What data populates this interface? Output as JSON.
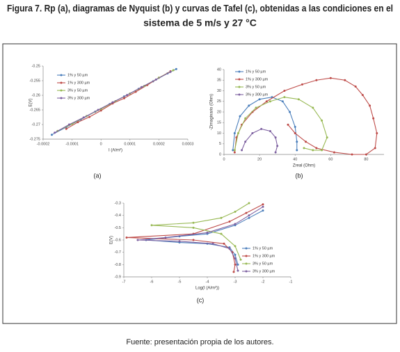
{
  "title_lines": [
    "Figura 7. Rp (a), diagramas de Nyquist (b) y curvas de Tafel (c), obtenidas a las condiciones en el",
    "sistema de 5 m/s y 27 °C"
  ],
  "source": "Fuente: presentación propia de los autores.",
  "chart_data": [
    {
      "type": "line",
      "caption": "(a)",
      "x_label": "I (A/m²)",
      "y_label": "E(V)",
      "xlim": [
        -0.0002,
        0.0003
      ],
      "xticks": [
        -0.0002,
        -0.0001,
        0,
        0.0001,
        0.0002,
        0.0003
      ],
      "ylim": [
        -0.275,
        -0.25
      ],
      "yticks": [
        -0.275,
        -0.27,
        -0.265,
        -0.26,
        -0.255,
        -0.25
      ],
      "series": [
        {
          "name": "1% y 50 µm",
          "color": "#4a7ebb",
          "x": [
            -0.00017,
            -0.00012,
            -7e-05,
            -2e-05,
            3e-05,
            8e-05,
            0.00013,
            0.00018,
            0.00023,
            0.00026
          ],
          "values": [
            -0.2735,
            -0.2709,
            -0.2683,
            -0.2656,
            -0.263,
            -0.2604,
            -0.2578,
            -0.2552,
            -0.2525,
            -0.251
          ]
        },
        {
          "name": "1% y 300 µm",
          "color": "#be4b48",
          "x": [
            -0.00012,
            -8e-05,
            -4e-05,
            0,
            4e-05,
            8e-05,
            0.00012,
            0.00016,
            0.0002,
            0.00024
          ],
          "values": [
            -0.2715,
            -0.2692,
            -0.2674,
            -0.2652,
            -0.2628,
            -0.261,
            -0.2588,
            -0.2565,
            -0.254,
            -0.2518
          ]
        },
        {
          "name": "3% y 50 µm",
          "color": "#98b954",
          "x": [
            -0.00015,
            -0.0001,
            -5e-05,
            0,
            5e-05,
            0.0001,
            0.00015,
            0.0002,
            0.00025
          ],
          "values": [
            -0.2722,
            -0.2698,
            -0.2671,
            -0.2647,
            -0.262,
            -0.2594,
            -0.2568,
            -0.254,
            -0.2514
          ]
        },
        {
          "name": "3% y 300 µm",
          "color": "#7d60a0",
          "x": [
            -0.00016,
            -0.00011,
            -6e-05,
            -1e-05,
            4e-05,
            9e-05,
            0.00014,
            0.00019,
            0.00024
          ],
          "values": [
            -0.2728,
            -0.27,
            -0.2676,
            -0.265,
            -0.2624,
            -0.2599,
            -0.2572,
            -0.2546,
            -0.252
          ]
        }
      ]
    },
    {
      "type": "line",
      "caption": "(b)",
      "x_label": "Zreal (Ohm)",
      "y_label": "-Zimaginario (Ohm)",
      "xlim": [
        0,
        90
      ],
      "xticks": [
        0,
        20,
        40,
        60,
        80
      ],
      "ylim": [
        0,
        40
      ],
      "yticks": [
        0,
        5,
        10,
        15,
        20,
        25,
        30,
        35,
        40
      ],
      "series": [
        {
          "name": "1% y 50 µm",
          "color": "#4a7ebb",
          "x": [
            5,
            6,
            9,
            14,
            20,
            27,
            33,
            37,
            40,
            41,
            41
          ],
          "values": [
            2,
            10,
            18,
            23,
            26,
            27,
            25,
            20,
            13,
            6,
            2
          ]
        },
        {
          "name": "1% y 300 µm",
          "color": "#be4b48",
          "x": [
            6,
            7,
            10,
            16,
            24,
            34,
            44,
            52,
            60,
            68,
            74,
            78,
            82,
            84,
            86,
            85,
            80,
            72,
            62,
            52,
            46,
            40,
            36
          ],
          "values": [
            1,
            8,
            14,
            20,
            25,
            30,
            33,
            35,
            36,
            35,
            32,
            28,
            23,
            17,
            10,
            3,
            0,
            0,
            1,
            3,
            6,
            10,
            14
          ]
        },
        {
          "name": "3% y 50 µm",
          "color": "#98b954",
          "x": [
            6,
            8,
            12,
            18,
            26,
            34,
            42,
            50,
            55,
            58,
            55,
            50,
            45
          ],
          "values": [
            2,
            10,
            17,
            22,
            25,
            27,
            26,
            22,
            16,
            8,
            2,
            2,
            3
          ]
        },
        {
          "name": "3% y 300 µm",
          "color": "#7d60a0",
          "x": [
            10,
            12,
            16,
            21,
            26,
            29,
            30,
            29
          ],
          "values": [
            2,
            6,
            10,
            12,
            11,
            8,
            4,
            1
          ]
        }
      ]
    },
    {
      "type": "line",
      "caption": "(c)",
      "x_label": "Log(I (A/m²))",
      "y_label": "E(V)",
      "xlim": [
        -7,
        -1
      ],
      "xticks": [
        -7,
        -6,
        -5,
        -4,
        -3,
        -2,
        -1
      ],
      "ylim": [
        -0.9,
        -0.3
      ],
      "yticks": [
        -0.9,
        -0.8,
        -0.7,
        -0.6,
        -0.5,
        -0.4,
        -0.3
      ],
      "series": [
        {
          "name": "1% y 50 µm",
          "color": "#4a7ebb",
          "x": [
            -2,
            -2.5,
            -3,
            -4,
            -5,
            -6.2,
            -5,
            -4,
            -3.2,
            -3,
            -2.9
          ],
          "values": [
            -0.36,
            -0.42,
            -0.48,
            -0.55,
            -0.57,
            -0.6,
            -0.62,
            -0.63,
            -0.66,
            -0.72,
            -0.8
          ]
        },
        {
          "name": "1% y 300 µm",
          "color": "#be4b48",
          "x": [
            -2,
            -2.6,
            -3.2,
            -4.5,
            -6.9,
            -4.5,
            -3.4,
            -3.1,
            -3,
            -3.05
          ],
          "values": [
            -0.31,
            -0.38,
            -0.45,
            -0.55,
            -0.58,
            -0.6,
            -0.63,
            -0.7,
            -0.8,
            -0.86
          ]
        },
        {
          "name": "3% y 50 µm",
          "color": "#98b954",
          "x": [
            -2.5,
            -3,
            -3.5,
            -4.5,
            -6,
            -4.5,
            -3.5,
            -3,
            -2.8
          ],
          "values": [
            -0.3,
            -0.37,
            -0.42,
            -0.46,
            -0.48,
            -0.5,
            -0.55,
            -0.65,
            -0.76
          ]
        },
        {
          "name": "3% y 300 µm",
          "color": "#7d60a0",
          "x": [
            -2,
            -2.5,
            -3,
            -4,
            -5.5,
            -6.5,
            -5,
            -3.8,
            -3.2,
            -3,
            -2.9
          ],
          "values": [
            -0.33,
            -0.4,
            -0.47,
            -0.54,
            -0.58,
            -0.6,
            -0.61,
            -0.63,
            -0.67,
            -0.75,
            -0.85
          ]
        }
      ]
    }
  ]
}
